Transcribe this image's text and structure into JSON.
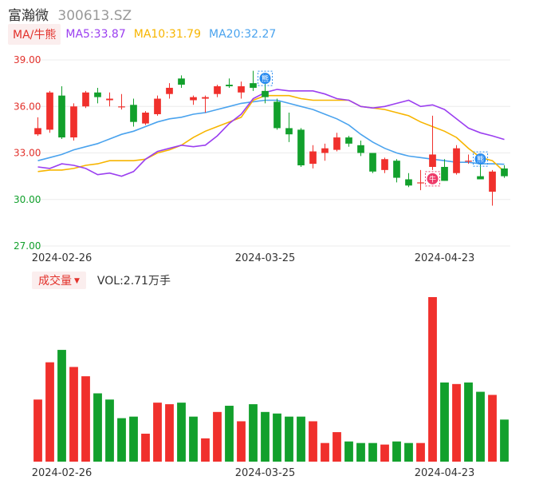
{
  "header": {
    "name": "富瀚微",
    "code": "300613.SZ"
  },
  "legend": {
    "tag": "MA/牛熊",
    "ma5": "MA5:33.87",
    "ma10": "MA10:31.79",
    "ma20": "MA20:32.27"
  },
  "volume_legend": {
    "tag": "成交量",
    "value": "VOL:2.71万手"
  },
  "colors": {
    "up": "#f0302c",
    "down": "#12a02c",
    "ma5": "#9b3ff0",
    "ma10": "#f7b500",
    "ma20": "#4aa3ee",
    "grid": "#ececec",
    "axis_text": "#e2312b",
    "date_text": "#333333"
  },
  "chart_data": [
    {
      "type": "candlestick",
      "y_ticks": [
        "39.00",
        "36.00",
        "33.00",
        "30.00",
        "27.00"
      ],
      "ylim": [
        27,
        39
      ],
      "x_ticks": [
        {
          "label": "2024-02-26",
          "index": 2
        },
        {
          "label": "2024-03-25",
          "index": 19
        },
        {
          "label": "2024-04-23",
          "index": 34
        }
      ],
      "candles": [
        {
          "open": 34.2,
          "high": 35.3,
          "low": 34.1,
          "close": 34.6
        },
        {
          "open": 34.5,
          "high": 37.0,
          "low": 34.3,
          "close": 36.9
        },
        {
          "open": 36.7,
          "high": 37.3,
          "low": 33.9,
          "close": 34.0
        },
        {
          "open": 34.0,
          "high": 36.2,
          "low": 33.8,
          "close": 36.0
        },
        {
          "open": 36.0,
          "high": 37.0,
          "low": 35.9,
          "close": 36.9
        },
        {
          "open": 36.9,
          "high": 37.2,
          "low": 36.2,
          "close": 36.6
        },
        {
          "open": 36.4,
          "high": 36.9,
          "low": 36.0,
          "close": 36.5
        },
        {
          "open": 36.0,
          "high": 36.8,
          "low": 35.8,
          "close": 36.0
        },
        {
          "open": 36.1,
          "high": 36.5,
          "low": 34.7,
          "close": 35.0
        },
        {
          "open": 34.9,
          "high": 35.7,
          "low": 34.8,
          "close": 35.6
        },
        {
          "open": 35.5,
          "high": 36.7,
          "low": 35.4,
          "close": 36.5
        },
        {
          "open": 36.8,
          "high": 37.5,
          "low": 36.5,
          "close": 37.2
        },
        {
          "open": 37.8,
          "high": 38.0,
          "low": 37.2,
          "close": 37.4
        },
        {
          "open": 36.4,
          "high": 36.7,
          "low": 36.1,
          "close": 36.6
        },
        {
          "open": 36.5,
          "high": 36.7,
          "low": 35.6,
          "close": 36.6
        },
        {
          "open": 36.8,
          "high": 37.4,
          "low": 36.6,
          "close": 37.3
        },
        {
          "open": 37.4,
          "high": 37.8,
          "low": 37.2,
          "close": 37.3
        },
        {
          "open": 36.9,
          "high": 37.6,
          "low": 36.5,
          "close": 37.3
        },
        {
          "open": 37.5,
          "high": 38.3,
          "low": 37.0,
          "close": 37.2
        },
        {
          "open": 37.0,
          "high": 37.5,
          "low": 36.2,
          "close": 36.6
        },
        {
          "open": 36.3,
          "high": 36.5,
          "low": 34.5,
          "close": 34.6
        },
        {
          "open": 34.6,
          "high": 35.6,
          "low": 33.7,
          "close": 34.2
        },
        {
          "open": 34.5,
          "high": 34.6,
          "low": 32.1,
          "close": 32.2
        },
        {
          "open": 32.3,
          "high": 33.5,
          "low": 32.0,
          "close": 33.1
        },
        {
          "open": 33.0,
          "high": 33.6,
          "low": 32.5,
          "close": 33.3
        },
        {
          "open": 33.2,
          "high": 34.3,
          "low": 33.1,
          "close": 34.0
        },
        {
          "open": 34.0,
          "high": 34.1,
          "low": 33.4,
          "close": 33.6
        },
        {
          "open": 33.5,
          "high": 33.8,
          "low": 32.8,
          "close": 33.0
        },
        {
          "open": 33.0,
          "high": 33.0,
          "low": 31.7,
          "close": 31.8
        },
        {
          "open": 31.9,
          "high": 32.7,
          "low": 31.7,
          "close": 32.6
        },
        {
          "open": 32.5,
          "high": 32.6,
          "low": 31.1,
          "close": 31.4
        },
        {
          "open": 31.3,
          "high": 31.7,
          "low": 30.8,
          "close": 30.9
        },
        {
          "open": 31.1,
          "high": 31.9,
          "low": 30.6,
          "close": 31.1
        },
        {
          "open": 32.1,
          "high": 35.4,
          "low": 31.9,
          "close": 32.9
        },
        {
          "open": 32.1,
          "high": 32.6,
          "low": 31.2,
          "close": 31.2
        },
        {
          "open": 31.7,
          "high": 33.5,
          "low": 31.6,
          "close": 33.3
        },
        {
          "open": 32.5,
          "high": 32.9,
          "low": 32.3,
          "close": 32.5
        },
        {
          "open": 31.5,
          "high": 32.3,
          "low": 31.3,
          "close": 31.3
        },
        {
          "open": 30.5,
          "high": 31.9,
          "low": 29.6,
          "close": 31.8
        },
        {
          "open": 32.0,
          "high": 32.2,
          "low": 31.4,
          "close": 31.5
        }
      ],
      "ma5": [
        32.1,
        32.0,
        32.3,
        32.2,
        32.0,
        31.6,
        31.7,
        31.5,
        31.8,
        32.6,
        33.1,
        33.3,
        33.5,
        33.4,
        33.5,
        34.1,
        34.9,
        35.5,
        36.5,
        36.9,
        37.1,
        37.0,
        37.0,
        37.0,
        36.8,
        36.5,
        36.4,
        36.0,
        35.9,
        36.0,
        36.2,
        36.4,
        36.0,
        36.1,
        35.8,
        35.2,
        34.6,
        34.3,
        34.1,
        33.87
      ],
      "ma10": [
        31.8,
        31.9,
        31.9,
        32.0,
        32.2,
        32.3,
        32.5,
        32.5,
        32.5,
        32.6,
        33.0,
        33.2,
        33.5,
        34.0,
        34.4,
        34.7,
        35.0,
        35.3,
        36.4,
        36.7,
        36.7,
        36.7,
        36.5,
        36.4,
        36.4,
        36.4,
        36.4,
        36.0,
        35.9,
        35.8,
        35.6,
        35.4,
        35.0,
        34.7,
        34.4,
        34.0,
        33.3,
        32.7,
        32.5,
        31.79
      ],
      "ma20": [
        32.5,
        32.7,
        32.9,
        33.2,
        33.4,
        33.6,
        33.9,
        34.2,
        34.4,
        34.7,
        35.0,
        35.2,
        35.3,
        35.5,
        35.6,
        35.8,
        36.0,
        36.2,
        36.3,
        36.4,
        36.4,
        36.2,
        36.0,
        35.8,
        35.5,
        35.2,
        34.8,
        34.2,
        33.7,
        33.3,
        33.0,
        32.8,
        32.7,
        32.6,
        32.5,
        32.4,
        32.4,
        32.3,
        32.3,
        32.27
      ],
      "markers": [
        {
          "index": 19,
          "symbol": "熊",
          "color": "#2a8cf0"
        },
        {
          "index": 33,
          "symbol": "牛",
          "color": "#ee3b6a"
        },
        {
          "index": 37,
          "symbol": "熊",
          "color": "#2a8cf0"
        }
      ]
    },
    {
      "type": "bar",
      "series_name": "VOL",
      "unit": "万手",
      "values": [
        4.0,
        6.4,
        7.2,
        6.1,
        5.5,
        4.4,
        4.0,
        2.8,
        2.9,
        1.8,
        3.8,
        3.7,
        3.8,
        2.9,
        1.5,
        3.2,
        3.6,
        2.6,
        3.7,
        3.2,
        3.1,
        2.9,
        2.9,
        2.6,
        1.2,
        1.9,
        1.3,
        1.2,
        1.2,
        1.1,
        1.3,
        1.2,
        1.2,
        10.6,
        5.1,
        5.0,
        5.1,
        4.5,
        4.3,
        2.71
      ],
      "directions": [
        "up",
        "up",
        "down",
        "up",
        "up",
        "down",
        "down",
        "down",
        "down",
        "up",
        "up",
        "up",
        "down",
        "down",
        "up",
        "up",
        "down",
        "up",
        "down",
        "down",
        "down",
        "down",
        "down",
        "up",
        "up",
        "up",
        "down",
        "down",
        "down",
        "up",
        "down",
        "down",
        "up",
        "up",
        "down",
        "up",
        "down",
        "down",
        "up",
        "down"
      ]
    }
  ]
}
